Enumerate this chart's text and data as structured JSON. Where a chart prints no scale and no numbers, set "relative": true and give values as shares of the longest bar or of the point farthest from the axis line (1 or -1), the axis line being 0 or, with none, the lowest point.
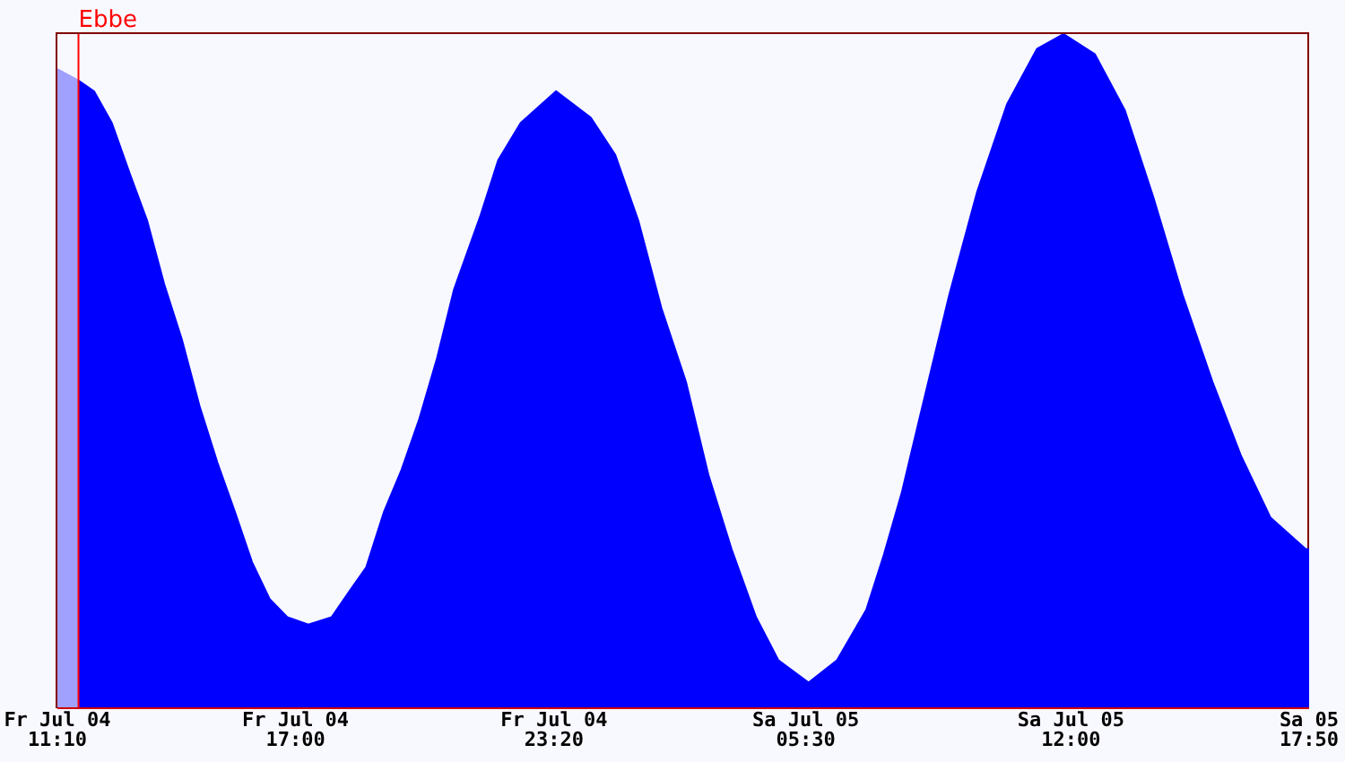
{
  "chart_data": {
    "type": "area",
    "relative": true,
    "xlim": [
      "--07-04T11:10",
      "--07-05T17:50"
    ],
    "xticks": [
      {
        "value": "--07-04T11:10",
        "label": "Fr Jul 04\n11:10"
      },
      {
        "value": "--07-04T17:00",
        "label": "Fr Jul 04\n17:00"
      },
      {
        "value": "--07-04T23:20",
        "label": "Fr Jul 04\n23:20"
      },
      {
        "value": "--07-05T05:30",
        "label": "Sa Jul 05\n05:30"
      },
      {
        "value": "--07-05T12:00",
        "label": "Sa Jul 05\n12:00"
      },
      {
        "value": "--07-05T17:50",
        "label": "Sa 05\n17:50"
      }
    ],
    "ref_lines": [
      {
        "axis": "x",
        "value": "--07-04T11:41",
        "label": "Ebbe",
        "color": "#ff0000"
      }
    ],
    "series": [
      {
        "color": "#a0a0ff",
        "x": [
          "--07-04T11:10",
          "--07-04T11:41"
        ],
        "values": [
          0.948,
          0.931
        ]
      },
      {
        "color": "#0000ff",
        "x": [
          "--07-04T11:41",
          "--07-04T12:04",
          "--07-04T12:30",
          "--07-04T12:56",
          "--07-04T13:22",
          "--07-04T13:47",
          "--07-04T14:13",
          "--07-04T14:39",
          "--07-04T15:05",
          "--07-04T15:31",
          "--07-04T15:56",
          "--07-04T16:22",
          "--07-04T16:48",
          "--07-04T17:19",
          "--07-04T17:53",
          "--07-04T18:19",
          "--07-04T18:44",
          "--07-04T19:10",
          "--07-04T19:36",
          "--07-04T20:02",
          "--07-04T20:28",
          "--07-04T20:53",
          "--07-04T21:32",
          "--07-04T21:58",
          "--07-04T22:31",
          "--07-04T23:23",
          "--07-05T00:14",
          "--07-05T00:50",
          "--07-05T01:24",
          "--07-05T01:58",
          "--07-05T02:34",
          "--07-05T03:07",
          "--07-05T03:41",
          "--07-05T04:17",
          "--07-05T04:50",
          "--07-05T05:34",
          "--07-05T06:16",
          "--07-05T06:59",
          "--07-05T07:25",
          "--07-05T07:51",
          "--07-05T08:17",
          "--07-05T09:01",
          "--07-05T09:42",
          "--07-05T10:26",
          "--07-05T11:10",
          "--07-05T11:49",
          "--07-05T12:35",
          "--07-05T13:19",
          "--07-05T14:01",
          "--07-05T14:44",
          "--07-05T15:28",
          "--07-05T16:10",
          "--07-05T16:53",
          "--07-05T17:45",
          "--07-05T17:50"
        ],
        "values": [
          0.931,
          0.915,
          0.868,
          0.794,
          0.723,
          0.629,
          0.547,
          0.448,
          0.365,
          0.291,
          0.217,
          0.162,
          0.135,
          0.124,
          0.135,
          0.173,
          0.209,
          0.291,
          0.354,
          0.429,
          0.519,
          0.621,
          0.731,
          0.813,
          0.868,
          0.915,
          0.876,
          0.821,
          0.723,
          0.593,
          0.484,
          0.346,
          0.236,
          0.135,
          0.071,
          0.038,
          0.071,
          0.146,
          0.228,
          0.319,
          0.429,
          0.613,
          0.766,
          0.896,
          0.978,
          1,
          0.97,
          0.887,
          0.758,
          0.613,
          0.484,
          0.374,
          0.283,
          0.236,
          0.236
        ]
      }
    ]
  }
}
